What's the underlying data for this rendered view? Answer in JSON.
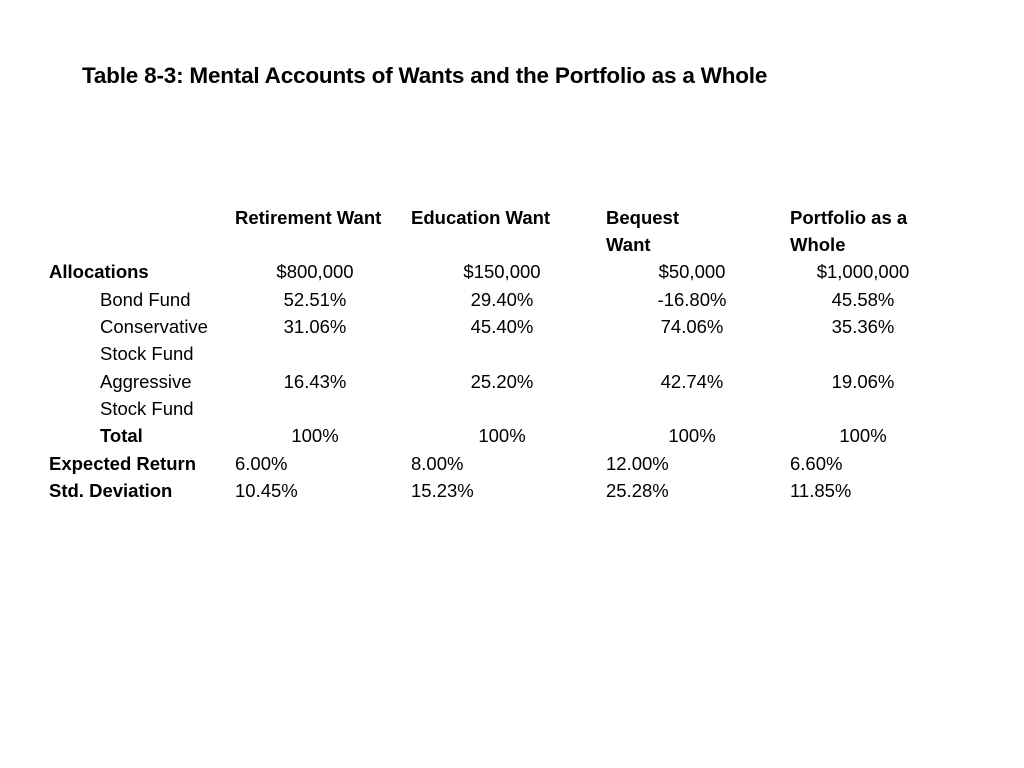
{
  "title": "Table 8-3: Mental Accounts of Wants and the Portfolio as a Whole",
  "table": {
    "column_headers": [
      "Retirement Want",
      "Education Want",
      "Bequest Want",
      "Portfolio as a Whole"
    ],
    "header_lines": {
      "bequest": [
        "Bequest",
        "Want"
      ],
      "portfolio": [
        "Portfolio as a",
        "Whole"
      ]
    },
    "rows": {
      "allocations": {
        "label": "Allocations",
        "values": [
          "$800,000",
          "$150,000",
          "$50,000",
          "$1,000,000"
        ]
      },
      "bond_fund": {
        "label": "Bond Fund",
        "values": [
          "52.51%",
          "29.40%",
          "-16.80%",
          "45.58%"
        ]
      },
      "conservative_stock": {
        "label_lines": [
          "Conservative",
          "Stock Fund"
        ],
        "values": [
          "31.06%",
          "45.40%",
          "74.06%",
          "35.36%"
        ]
      },
      "aggressive_stock": {
        "label_lines": [
          "Aggressive",
          "Stock Fund"
        ],
        "values": [
          "16.43%",
          "25.20%",
          "42.74%",
          "19.06%"
        ]
      },
      "total": {
        "label": "Total",
        "values": [
          "100%",
          "100%",
          "100%",
          "100%"
        ]
      },
      "expected_return": {
        "label": "Expected Return",
        "values": [
          "6.00%",
          "8.00%",
          "12.00%",
          "6.60%"
        ]
      },
      "std_deviation": {
        "label": "Std. Deviation",
        "values": [
          "10.45%",
          "15.23%",
          "25.28%",
          "11.85%"
        ]
      }
    }
  }
}
